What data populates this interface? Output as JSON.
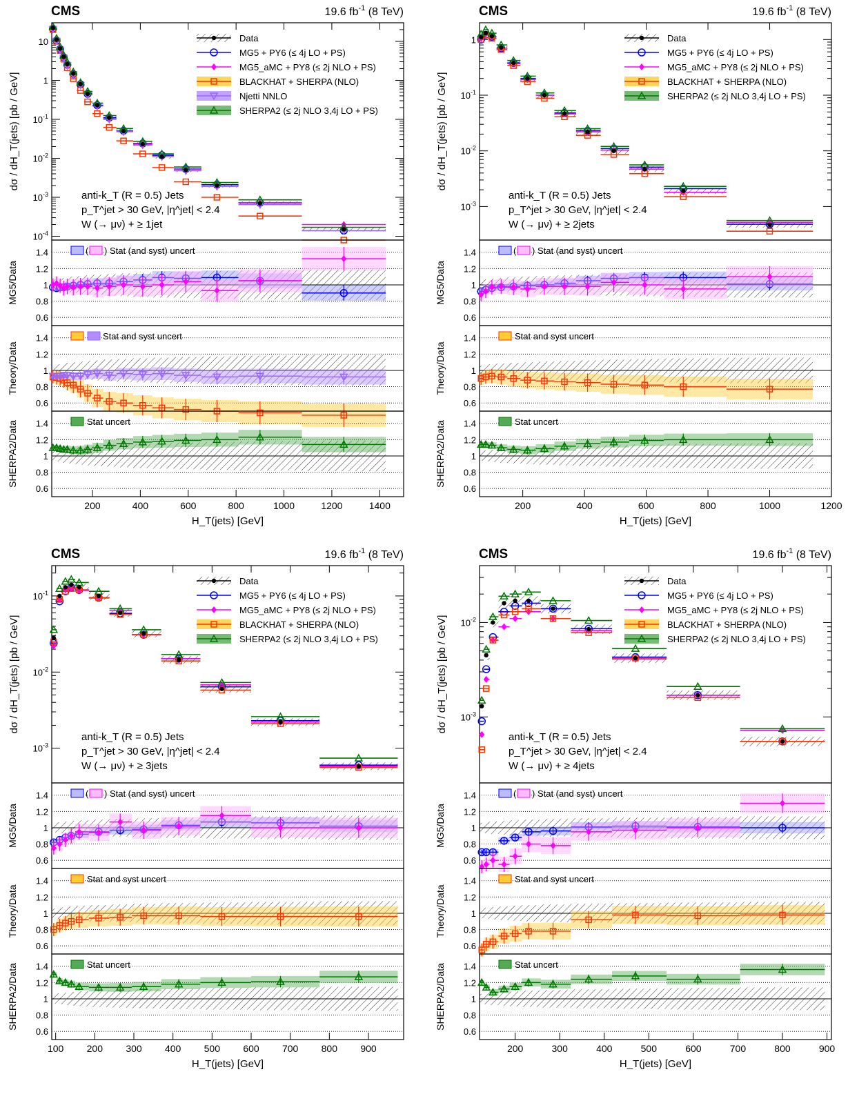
{
  "figure": {
    "experiment": "CMS",
    "lumi": "19.6 fb",
    "lumi_sup": "-1",
    "energy": " (8 TeV)",
    "legend": [
      {
        "label": "Data",
        "color": "#000000",
        "marker": "data"
      },
      {
        "label": "MG5 + PY6 (≤ 4j LO + PS)",
        "color": "#0000ff",
        "marker": "circle"
      },
      {
        "label": "MG5_aMC + PY8 (≤ 2j NLO + PS)",
        "color": "#ff00ff",
        "marker": "diamond"
      },
      {
        "label": "BLACKHAT + SHERPA (NLO)",
        "color": "#ff3300",
        "marker": "square",
        "band": "#ffcc33"
      },
      {
        "label": "Njetti NNLO",
        "color": "#9966ff",
        "marker": "triangle-down",
        "band": "#b38cff"
      },
      {
        "label": "SHERPA2 (≤ 2j NLO 3,4j LO + PS)",
        "color": "#007700",
        "marker": "triangle",
        "band": "#55aa55"
      }
    ],
    "ratio_legend": {
      "mg5": ") Stat (and syst) uncert",
      "theory": "Stat and syst uncert",
      "sherpa": "Stat uncert"
    }
  },
  "chart_data": [
    {
      "type": "line",
      "panel": "W + >=1 jet",
      "ylabel": "dσ / dH_T(jets)  [pb / GeV]",
      "xlabel": "H_T(jets) [GeV]",
      "ratio_ylabels": [
        "MG5/Data",
        "Theory/Data",
        "SHERPA2/Data"
      ],
      "annotation": [
        "anti-k_T (R = 0.5) Jets",
        "p_T^jet > 30 GeV, |η^jet| < 2.4",
        "W (→ μν) + ≥ 1jet"
      ],
      "xlim": [
        30,
        1500
      ],
      "ylim": [
        8e-05,
        30
      ],
      "yscale": "log",
      "xticks": [
        200,
        400,
        600,
        800,
        1000,
        1200,
        1400
      ],
      "yticks": [
        0.0001,
        0.001,
        0.01,
        0.1,
        1,
        10
      ],
      "yticklabels": [
        "10^-4",
        "10^-3",
        "10^-2",
        "10^-1",
        "1",
        "10"
      ],
      "x": [
        35,
        50,
        65,
        80,
        95,
        120,
        150,
        180,
        220,
        270,
        330,
        410,
        490,
        590,
        720,
        900,
        1250
      ],
      "series": [
        {
          "name": "Data",
          "values": [
            22,
            11,
            6.5,
            4.0,
            2.6,
            1.5,
            0.8,
            0.45,
            0.23,
            0.11,
            0.05,
            0.023,
            0.011,
            0.005,
            0.002,
            0.0007,
            0.00015
          ]
        },
        {
          "name": "MG5 + PY6 (≤ 4j LO + PS)",
          "values": [
            21,
            10.5,
            6.3,
            3.9,
            2.5,
            1.45,
            0.79,
            0.45,
            0.23,
            0.11,
            0.051,
            0.024,
            0.012,
            0.0053,
            0.0021,
            0.00072,
            0.00014
          ]
        },
        {
          "name": "MG5_aMC + PY8 (≤ 2j NLO + PS)",
          "values": [
            21.5,
            11,
            6.4,
            3.9,
            2.5,
            1.45,
            0.78,
            0.44,
            0.22,
            0.105,
            0.05,
            0.023,
            0.011,
            0.0052,
            0.0019,
            0.00073,
            0.0002
          ]
        },
        {
          "name": "BLACKHAT + SHERPA (NLO)",
          "values": [
            20,
            10,
            5.8,
            3.5,
            2.1,
            1.1,
            0.55,
            0.28,
            0.14,
            0.062,
            0.028,
            0.013,
            0.0058,
            0.0025,
            0.001,
            0.00033,
            8e-05
          ]
        },
        {
          "name": "Njetti NNLO",
          "values": [
            20.5,
            10.2,
            6.0,
            3.7,
            2.4,
            1.4,
            0.75,
            0.43,
            0.22,
            0.1,
            0.048,
            0.022,
            0.011,
            0.0048,
            0.0019,
            0.00065,
            0.00014
          ]
        },
        {
          "name": "SHERPA2 (≤ 2j NLO 3,4j LO + PS)",
          "values": [
            24,
            12,
            7.2,
            4.4,
            2.9,
            1.65,
            0.88,
            0.52,
            0.26,
            0.125,
            0.058,
            0.027,
            0.013,
            0.006,
            0.0024,
            0.00086,
            0.00017
          ]
        }
      ],
      "ratios": {
        "mg5": [
          0.97,
          0.96,
          0.97,
          0.97,
          0.98,
          0.99,
          1.0,
          1.01,
          1.02,
          1.02,
          1.04,
          1.06,
          1.09,
          1.08,
          1.09,
          1.05,
          0.9
        ],
        "amc": [
          1.0,
          1.02,
          0.99,
          0.96,
          0.98,
          0.97,
          0.98,
          0.98,
          0.96,
          0.98,
          1.0,
          0.98,
          1.0,
          1.04,
          0.93,
          1.05,
          1.32
        ],
        "blackhat": [
          0.92,
          0.91,
          0.9,
          0.88,
          0.85,
          0.82,
          0.77,
          0.72,
          0.66,
          0.62,
          0.6,
          0.57,
          0.54,
          0.52,
          0.5,
          0.48,
          0.45
        ],
        "njetti": [
          0.93,
          0.93,
          0.93,
          0.94,
          0.94,
          0.93,
          0.93,
          0.95,
          0.96,
          0.94,
          0.96,
          0.95,
          0.96,
          0.94,
          0.92,
          0.93,
          0.92
        ],
        "sherpa": [
          1.1,
          1.1,
          1.09,
          1.08,
          1.08,
          1.07,
          1.07,
          1.08,
          1.1,
          1.13,
          1.15,
          1.17,
          1.18,
          1.19,
          1.2,
          1.23,
          1.14
        ]
      }
    },
    {
      "type": "line",
      "panel": "W + >=2 jets",
      "ylabel": "dσ / dH_T(jets)  [pb / GeV]",
      "xlabel": "H_T(jets) [GeV]",
      "ratio_ylabels": [
        "MG5/Data",
        "Theory/Data",
        "SHERPA2/Data"
      ],
      "annotation": [
        "anti-k_T (R = 0.5) Jets",
        "p_T^jet > 30 GeV, |η^jet| < 2.4",
        "W (→ μν) + ≥ 2jets"
      ],
      "xlim": [
        60,
        1200
      ],
      "ylim": [
        0.00025,
        2
      ],
      "yscale": "log",
      "xticks": [
        200,
        400,
        600,
        800,
        1000,
        1200
      ],
      "yticks": [
        0.001,
        0.01,
        0.1,
        1
      ],
      "yticklabels": [
        "10^-3",
        "10^-2",
        "10^-1",
        "1"
      ],
      "x": [
        65,
        80,
        100,
        130,
        170,
        215,
        270,
        335,
        410,
        495,
        595,
        720,
        1000
      ],
      "series": [
        {
          "name": "Data",
          "values": [
            1.1,
            1.3,
            1.15,
            0.72,
            0.38,
            0.2,
            0.1,
            0.047,
            0.022,
            0.01,
            0.0047,
            0.0019,
            0.00047
          ]
        },
        {
          "name": "MG5 + PY6 (≤ 4j LO + PS)",
          "values": [
            1.0,
            1.22,
            1.12,
            0.7,
            0.38,
            0.2,
            0.1,
            0.048,
            0.023,
            0.011,
            0.0051,
            0.0021,
            0.00048
          ]
        },
        {
          "name": "MG5_aMC + PY8 (≤ 2j NLO + PS)",
          "values": [
            1.05,
            1.25,
            1.12,
            0.7,
            0.37,
            0.19,
            0.1,
            0.046,
            0.022,
            0.0103,
            0.0047,
            0.0018,
            0.00052
          ]
        },
        {
          "name": "BLACKHAT + SHERPA (NLO)",
          "values": [
            1.0,
            1.2,
            1.05,
            0.66,
            0.34,
            0.175,
            0.088,
            0.041,
            0.019,
            0.0086,
            0.0039,
            0.0015,
            0.00036
          ]
        },
        {
          "name": "SHERPA2 (≤ 2j NLO 3,4j LO + PS)",
          "values": [
            1.25,
            1.5,
            1.3,
            0.8,
            0.42,
            0.22,
            0.11,
            0.053,
            0.025,
            0.012,
            0.0056,
            0.0023,
            0.00056
          ]
        }
      ],
      "ratios": {
        "mg5": [
          0.92,
          0.94,
          0.96,
          0.97,
          0.98,
          0.99,
          1.0,
          1.02,
          1.05,
          1.08,
          1.09,
          1.09,
          1.01
        ],
        "amc": [
          0.88,
          0.92,
          0.97,
          0.98,
          0.97,
          0.95,
          0.98,
          0.98,
          0.98,
          1.03,
          1.0,
          0.95,
          1.1
        ],
        "blackhat": [
          0.9,
          0.92,
          0.93,
          0.92,
          0.9,
          0.88,
          0.87,
          0.86,
          0.85,
          0.83,
          0.82,
          0.8,
          0.77
        ],
        "sherpa": [
          1.14,
          1.14,
          1.13,
          1.1,
          1.08,
          1.07,
          1.09,
          1.12,
          1.15,
          1.17,
          1.19,
          1.2,
          1.2
        ]
      }
    },
    {
      "type": "line",
      "panel": "W + >=3 jets",
      "ylabel": "dσ / dH_T(jets)  [pb / GeV]",
      "xlabel": "H_T(jets) [GeV]",
      "ratio_ylabels": [
        "MG5/Data",
        "Theory/Data",
        "SHERPA2/Data"
      ],
      "annotation": [
        "anti-k_T (R = 0.5) Jets",
        "p_T^jet > 30 GeV, |η^jet| < 2.4",
        "W (→ μν) + ≥ 3jets"
      ],
      "xlim": [
        90,
        990
      ],
      "ylim": [
        0.00035,
        0.25
      ],
      "yscale": "log",
      "xticks": [
        100,
        200,
        300,
        400,
        500,
        600,
        700,
        800,
        900
      ],
      "yticks": [
        0.001,
        0.01,
        0.1
      ],
      "yticklabels": [
        "10^-3",
        "10^-2",
        "10^-1"
      ],
      "x": [
        95,
        110,
        125,
        140,
        160,
        210,
        265,
        325,
        415,
        525,
        675,
        875
      ],
      "series": [
        {
          "name": "Data",
          "values": [
            0.028,
            0.1,
            0.13,
            0.14,
            0.13,
            0.1,
            0.06,
            0.032,
            0.0145,
            0.006,
            0.0022,
            0.00058
          ]
        },
        {
          "name": "MG5 + PY6 (≤ 4j LO + PS)",
          "values": [
            0.024,
            0.085,
            0.115,
            0.13,
            0.12,
            0.095,
            0.059,
            0.031,
            0.015,
            0.0064,
            0.0023,
            0.0006
          ]
        },
        {
          "name": "MG5_aMC + PY8 (≤ 2j NLO + PS)",
          "values": [
            0.022,
            0.09,
            0.12,
            0.125,
            0.118,
            0.094,
            0.064,
            0.031,
            0.015,
            0.0068,
            0.0022,
            0.00058
          ]
        },
        {
          "name": "BLACKHAT + SHERPA (NLO)",
          "values": [
            0.025,
            0.09,
            0.115,
            0.125,
            0.12,
            0.095,
            0.057,
            0.031,
            0.014,
            0.0058,
            0.0021,
            0.00056
          ]
        },
        {
          "name": "SHERPA2 (≤ 2j NLO 3,4j LO + PS)",
          "values": [
            0.036,
            0.125,
            0.155,
            0.165,
            0.15,
            0.115,
            0.068,
            0.036,
            0.017,
            0.0073,
            0.0026,
            0.00074
          ]
        }
      ],
      "ratios": {
        "mg5": [
          0.82,
          0.85,
          0.88,
          0.9,
          0.92,
          0.95,
          0.97,
          0.98,
          1.03,
          1.07,
          1.06,
          1.02
        ],
        "amc": [
          0.75,
          0.8,
          0.85,
          0.9,
          0.95,
          0.94,
          1.07,
          0.97,
          1.02,
          1.15,
          1.0,
          1.0
        ],
        "blackhat": [
          0.8,
          0.85,
          0.88,
          0.9,
          0.92,
          0.94,
          0.95,
          0.97,
          0.97,
          0.96,
          0.96,
          0.96
        ],
        "sherpa": [
          1.3,
          1.22,
          1.2,
          1.18,
          1.15,
          1.14,
          1.14,
          1.15,
          1.18,
          1.2,
          1.21,
          1.27
        ]
      }
    },
    {
      "type": "line",
      "panel": "W + >=4 jets",
      "ylabel": "dσ / dH_T(jets)  [pb / GeV]",
      "xlabel": "H_T(jets) [GeV]",
      "ratio_ylabels": [
        "MG5/Data",
        "Theory/Data",
        "SHERPA2/Data"
      ],
      "annotation": [
        "anti-k_T (R = 0.5) Jets",
        "p_T^jet > 30 GeV, |η^jet| < 2.4",
        "W (→ μν) + ≥ 4jets"
      ],
      "xlim": [
        120,
        910
      ],
      "ylim": [
        0.0002,
        0.04
      ],
      "yscale": "log",
      "xticks": [
        200,
        300,
        400,
        500,
        600,
        700,
        800,
        900
      ],
      "yticks": [
        0.001,
        0.01
      ],
      "yticklabels": [
        "10^-3",
        "10^-2"
      ],
      "x": [
        125,
        135,
        150,
        175,
        200,
        230,
        285,
        365,
        470,
        610,
        800
      ],
      "series": [
        {
          "name": "Data",
          "values": [
            0.0013,
            0.0045,
            0.01,
            0.016,
            0.017,
            0.017,
            0.014,
            0.0085,
            0.0042,
            0.0017,
            0.00055
          ]
        },
        {
          "name": "MG5 + PY6 (≤ 4j LO + PS)",
          "values": [
            0.0009,
            0.0032,
            0.007,
            0.013,
            0.015,
            0.016,
            0.014,
            0.0086,
            0.0043,
            0.0017,
            0.00055
          ]
        },
        {
          "name": "MG5_aMC + PY8 (≤ 2j NLO + PS)",
          "values": [
            0.00065,
            0.0025,
            0.0065,
            0.009,
            0.011,
            0.013,
            0.011,
            0.0082,
            0.0041,
            0.0017,
            0.00072
          ]
        },
        {
          "name": "BLACKHAT + SHERPA (NLO)",
          "values": [
            0.00045,
            0.002,
            0.0065,
            0.012,
            0.013,
            0.014,
            0.011,
            0.0078,
            0.0042,
            0.0016,
            0.00055
          ]
        },
        {
          "name": "SHERPA2 (≤ 2j NLO 3,4j LO + PS)",
          "values": [
            0.0015,
            0.0052,
            0.0115,
            0.019,
            0.02,
            0.021,
            0.017,
            0.0105,
            0.0053,
            0.0021,
            0.00075
          ]
        }
      ],
      "ratios": {
        "mg5": [
          0.7,
          0.7,
          0.7,
          0.84,
          0.88,
          0.95,
          0.96,
          1.01,
          1.02,
          1.01,
          1.0
        ],
        "amc": [
          0.52,
          0.55,
          0.6,
          0.55,
          0.65,
          0.8,
          0.78,
          0.95,
          0.97,
          1.0,
          1.3
        ],
        "blackhat": [
          0.55,
          0.62,
          0.65,
          0.72,
          0.75,
          0.78,
          0.78,
          0.92,
          0.98,
          0.97,
          0.98
        ],
        "sherpa": [
          1.2,
          1.14,
          1.08,
          1.12,
          1.15,
          1.2,
          1.18,
          1.24,
          1.28,
          1.24,
          1.36
        ]
      }
    }
  ]
}
